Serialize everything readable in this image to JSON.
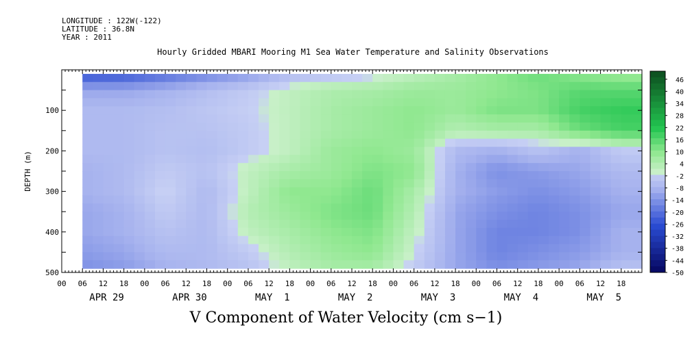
{
  "header": {
    "longitude": "LONGITUDE : 122W(-122)",
    "latitude": "LATITUDE : 36.8N",
    "year": "YEAR : 2011"
  },
  "colors": {
    "min": "#04045a",
    "mid_low": "#2a4bd2",
    "neg_light": "#a6b2ee",
    "zero_low": "#c7d0f4",
    "zero_high": "#c8f0c8",
    "pos_light": "#90e890",
    "pos_mid": "#22c550",
    "max": "#0d4d1f"
  },
  "chart_data": {
    "type": "heatmap",
    "title": "Hourly Gridded MBARI Mooring M1 Sea Water Temperature and Salinity Observations",
    "xlabel": "V Component of Water Velocity (cm s−1)",
    "ylabel": "DEPTH (m)",
    "ylim": [
      0,
      500
    ],
    "y_ticks": [
      100,
      200,
      300,
      400,
      500
    ],
    "data_depth_range": [
      10,
      490
    ],
    "x_hour_ticks": [
      "00",
      "06",
      "12",
      "18",
      "00",
      "06",
      "12",
      "18",
      "00",
      "06",
      "12",
      "18",
      "00",
      "06",
      "12",
      "18",
      "00",
      "06",
      "12",
      "18",
      "00",
      "06",
      "12",
      "18",
      "00",
      "06",
      "12",
      "18"
    ],
    "x_day_labels": [
      "APR 29",
      "APR 30",
      "MAY  1",
      "MAY  2",
      "MAY  3",
      "MAY  4",
      "MAY  5"
    ],
    "data_start_hour": 6,
    "colorbar": {
      "labels": [
        "-50",
        "-44",
        "-38",
        "-32",
        "-26",
        "-20",
        "-14",
        "-8",
        "-2",
        "4",
        "10",
        "16",
        "22",
        "28",
        "34",
        "40",
        "46"
      ],
      "range": [
        -50,
        50
      ],
      "step": 3
    },
    "depths": [
      10,
      50,
      100,
      150,
      200,
      250,
      300,
      350,
      400,
      450,
      490
    ],
    "times_hours": [
      6,
      18,
      30,
      42,
      54,
      66,
      78,
      90,
      102,
      114,
      126,
      138,
      150,
      162
    ],
    "values": [
      [
        -25,
        -24,
        -20,
        -16,
        -12,
        -6,
        -4,
        -2,
        2,
        6,
        10,
        14,
        10,
        8
      ],
      [
        -10,
        -10,
        -8,
        -5,
        -2,
        2,
        5,
        6,
        8,
        8,
        10,
        12,
        16,
        16
      ],
      [
        -6,
        -6,
        -5,
        -3,
        -1,
        2,
        6,
        8,
        10,
        8,
        12,
        12,
        18,
        20
      ],
      [
        -6,
        -6,
        -4,
        -4,
        -2,
        2,
        6,
        8,
        10,
        4,
        6,
        6,
        14,
        18
      ],
      [
        -6,
        -6,
        -4,
        -5,
        -2,
        2,
        8,
        10,
        8,
        -6,
        -8,
        -4,
        -8,
        -2
      ],
      [
        -8,
        -6,
        -2,
        -4,
        2,
        6,
        8,
        12,
        10,
        -8,
        -14,
        -12,
        -10,
        -6
      ],
      [
        -8,
        -6,
        0,
        -6,
        2,
        10,
        10,
        14,
        6,
        -8,
        -12,
        -14,
        -12,
        -8
      ],
      [
        -10,
        -8,
        -2,
        -6,
        4,
        8,
        12,
        14,
        4,
        -10,
        -14,
        -16,
        -14,
        -10
      ],
      [
        -10,
        -8,
        -4,
        -6,
        2,
        6,
        10,
        12,
        2,
        -10,
        -16,
        -16,
        -14,
        -8
      ],
      [
        -12,
        -10,
        -6,
        -6,
        -2,
        4,
        8,
        10,
        0,
        -10,
        -16,
        -14,
        -12,
        -8
      ],
      [
        -14,
        -12,
        -8,
        -6,
        -4,
        2,
        6,
        6,
        -2,
        -10,
        -14,
        -12,
        -10,
        -4
      ]
    ]
  }
}
